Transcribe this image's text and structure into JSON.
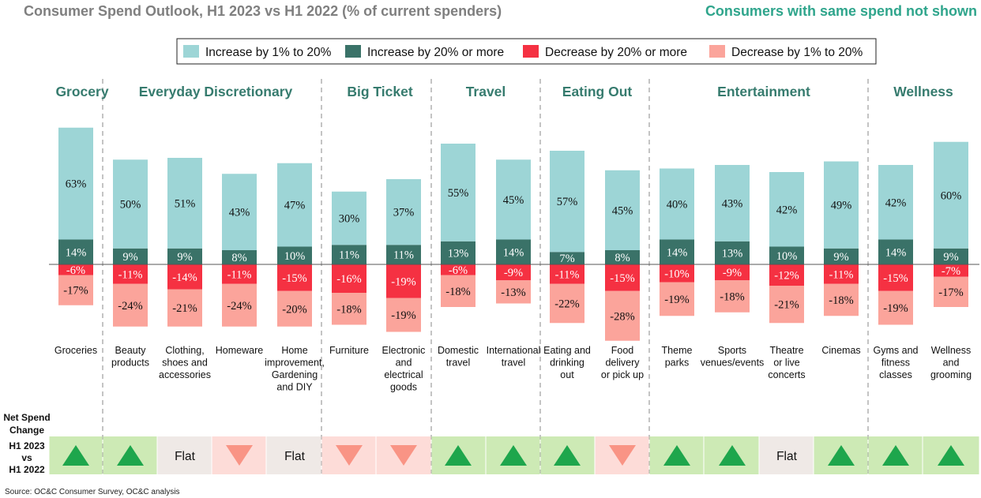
{
  "header": {
    "title": "Consumer Spend Outlook, H1 2023 vs H1 2022 (% of current spenders)",
    "note": "Consumers with same spend not shown"
  },
  "colors": {
    "inc_small": "#9dd5d6",
    "inc_large": "#3a7268",
    "dec_large": "#f53142",
    "dec_small": "#fba49b",
    "group_title": "#367b6e",
    "title_gray": "#7f7f7f",
    "up_bg": "#cdeab5",
    "up_arrow": "#1ea64c",
    "down_bg": "#fddcd8",
    "down_arrow": "#f99485",
    "flat_bg": "#efe9e6"
  },
  "source": "Source: OC&C Consumer Survey, OC&C analysis",
  "net_label": [
    "Net Spend",
    "Change",
    "H1 2023",
    "vs",
    "H1 2022"
  ],
  "net_flat_label": "Flat",
  "chart_data": {
    "type": "bar",
    "stacked": true,
    "legend": [
      "Increase by 1% to 20%",
      "Increase by 20% or more",
      "Decrease by 20% or more",
      "Decrease by 1% to 20%"
    ],
    "legend_position": "top",
    "groups": [
      {
        "name": "Grocery",
        "categories": [
          "Groceries"
        ]
      },
      {
        "name": "Everyday Discretionary",
        "categories": [
          "Beauty products",
          "Clothing, shoes and accessories",
          "Homeware",
          "Home improvement, Gardening and DIY"
        ]
      },
      {
        "name": "Big Ticket",
        "categories": [
          "Furniture",
          "Electronic and electrical goods"
        ]
      },
      {
        "name": "Travel",
        "categories": [
          "Domestic travel",
          "International travel"
        ]
      },
      {
        "name": "Eating Out",
        "categories": [
          "Eating and drinking out",
          "Food delivery or pick up"
        ]
      },
      {
        "name": "Entertainment",
        "categories": [
          "Theme parks",
          "Sports venues/events",
          "Theatre or live concerts",
          "Cinemas"
        ]
      },
      {
        "name": "Wellness",
        "categories": [
          "Gyms and fitness classes",
          "Wellness and grooming"
        ]
      }
    ],
    "category_label_lines": [
      [
        "Groceries"
      ],
      [
        "Beauty",
        "products"
      ],
      [
        "Clothing,",
        "shoes and",
        "accessories"
      ],
      [
        "Homeware"
      ],
      [
        "Home",
        "improvement,",
        "Gardening",
        "and DIY"
      ],
      [
        "Furniture"
      ],
      [
        "Electronic",
        "and",
        "electrical",
        "goods"
      ],
      [
        "Domestic",
        "travel"
      ],
      [
        "International",
        "travel"
      ],
      [
        "Eating and",
        "drinking",
        "out"
      ],
      [
        "Food",
        "delivery",
        "or pick up"
      ],
      [
        "Theme",
        "parks"
      ],
      [
        "Sports",
        "venues/events"
      ],
      [
        "Theatre",
        "or live",
        "concerts"
      ],
      [
        "Cinemas"
      ],
      [
        "Gyms and",
        "fitness",
        "classes"
      ],
      [
        "Wellness",
        "and",
        "grooming"
      ]
    ],
    "series": [
      {
        "name": "Increase by 1% to 20%",
        "values": [
          63,
          50,
          51,
          43,
          47,
          30,
          37,
          55,
          45,
          57,
          45,
          40,
          43,
          42,
          49,
          42,
          60
        ]
      },
      {
        "name": "Increase by 20% or more",
        "values": [
          14,
          9,
          9,
          8,
          10,
          11,
          11,
          13,
          14,
          7,
          8,
          14,
          13,
          10,
          9,
          14,
          9
        ]
      },
      {
        "name": "Decrease by 20% or more",
        "values": [
          -6,
          -11,
          -14,
          -11,
          -15,
          -16,
          -19,
          -6,
          -9,
          -11,
          -15,
          -10,
          -9,
          -12,
          -11,
          -15,
          -7
        ]
      },
      {
        "name": "Decrease by 1% to 20%",
        "values": [
          -17,
          -24,
          -21,
          -24,
          -20,
          -18,
          -19,
          -18,
          -13,
          -22,
          -28,
          -19,
          -18,
          -21,
          -18,
          -19,
          -17
        ]
      }
    ],
    "net_spend_change": [
      "up",
      "up",
      "flat",
      "down",
      "flat",
      "down",
      "down",
      "up",
      "up",
      "up",
      "down",
      "up",
      "up",
      "flat",
      "up",
      "up",
      "up"
    ]
  }
}
